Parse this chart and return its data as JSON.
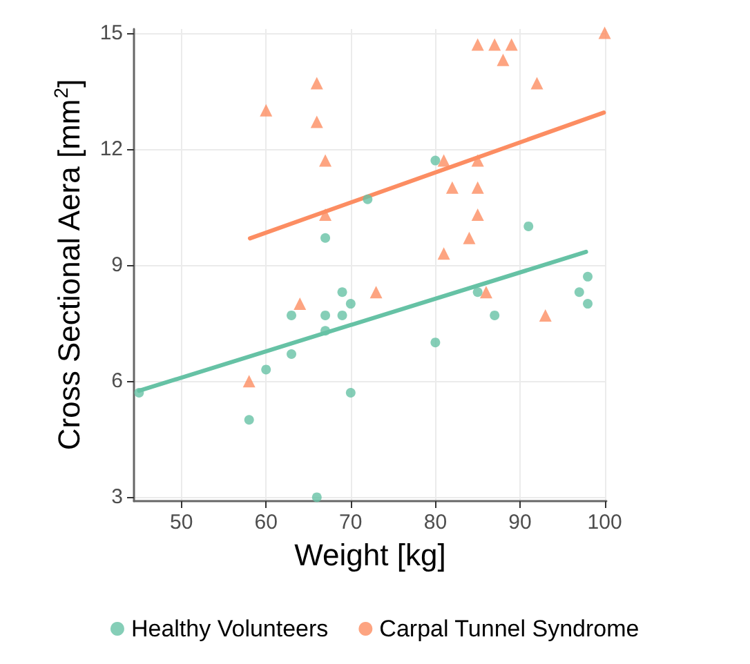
{
  "chart_data": {
    "type": "scatter",
    "xlabel": "Weight [kg]",
    "ylabel": "Cross Sectional Aera [mm$^{2}$]",
    "xlim": [
      44.4,
      100.2
    ],
    "xticks": [
      50,
      60,
      70,
      80,
      90,
      100
    ],
    "ylim": [
      2.9,
      15.1
    ],
    "yticks": [
      3,
      6,
      9,
      12,
      15
    ],
    "grid": true,
    "legend": "bottom",
    "series": [
      {
        "name": "Healthy Volunteers",
        "color": "#66c2a5",
        "marker": "circle",
        "x": [
          45,
          58,
          60,
          63,
          63,
          67,
          67,
          69,
          69,
          70,
          70,
          66,
          72,
          67,
          80,
          91,
          98,
          85,
          87,
          80,
          97,
          98
        ],
        "values": [
          5.7,
          5.0,
          6.3,
          6.7,
          7.7,
          7.7,
          7.3,
          8.3,
          7.7,
          8.0,
          5.7,
          3.0,
          10.7,
          9.7,
          11.7,
          10.0,
          8.7,
          8.3,
          7.7,
          7.0,
          8.3,
          8.0
        ]
      },
      {
        "name": "Carpal Tunnel Syndrome",
        "color": "#fc8d62",
        "marker": "triangle",
        "x": [
          58,
          64,
          73,
          66,
          60,
          66,
          67,
          67,
          85,
          87,
          89,
          88,
          92,
          100,
          81,
          85,
          82,
          85,
          85,
          84,
          81,
          86,
          93
        ],
        "values": [
          6.0,
          8.0,
          8.3,
          13.7,
          13.0,
          12.7,
          11.7,
          10.3,
          14.7,
          14.7,
          14.7,
          14.3,
          13.7,
          15.0,
          11.7,
          11.7,
          11.0,
          11.0,
          10.3,
          9.7,
          9.3,
          8.3,
          7.7
        ]
      },
      {
        "type": "line",
        "color": "#66c2a5",
        "x": [
          45,
          97.8
        ],
        "values": [
          5.75,
          9.34
        ]
      },
      {
        "type": "line",
        "color": "#fc8d62",
        "x": [
          58.1,
          99.9
        ],
        "values": [
          9.69,
          12.94
        ]
      }
    ]
  }
}
